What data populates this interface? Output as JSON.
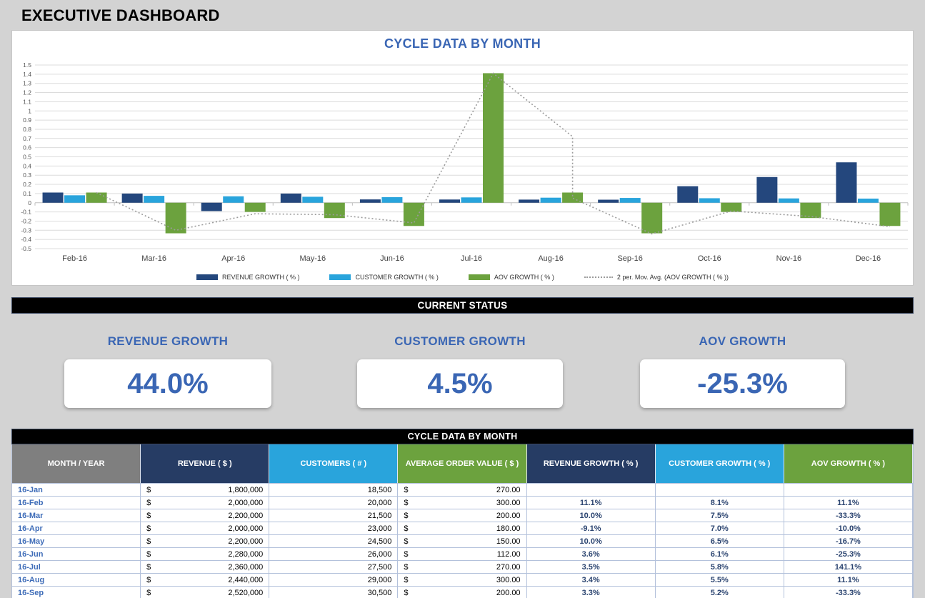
{
  "page": {
    "title": "EXECUTIVE DASHBOARD"
  },
  "colors": {
    "accent_blue": "#3a66b4",
    "bar_navy": "#24477d",
    "bar_lightblue": "#29a4dc",
    "bar_green": "#6ca23e",
    "header_navy": "#263c64",
    "header_gray": "#7f7f7f",
    "trendline_gray": "#9b9b9b",
    "gridline": "#dcdcdc",
    "zero_line": "#bfbfbf"
  },
  "chart_data": {
    "type": "bar",
    "title": "CYCLE DATA BY MONTH",
    "categories": [
      "Feb-16",
      "Mar-16",
      "Apr-16",
      "May-16",
      "Jun-16",
      "Jul-16",
      "Aug-16",
      "Sep-16",
      "Oct-16",
      "Nov-16",
      "Dec-16"
    ],
    "series": [
      {
        "name": "REVENUE GROWTH ( % )",
        "color": "#24477d",
        "values": [
          0.111,
          0.1,
          -0.091,
          0.1,
          0.036,
          0.035,
          0.034,
          0.033,
          0.18,
          0.28,
          0.44
        ]
      },
      {
        "name": "CUSTOMER GROWTH ( % )",
        "color": "#29a4dc",
        "values": [
          0.081,
          0.075,
          0.07,
          0.065,
          0.061,
          0.058,
          0.055,
          0.052,
          0.049,
          0.047,
          0.045
        ]
      },
      {
        "name": "AOV GROWTH ( % )",
        "color": "#6ca23e",
        "values": [
          0.111,
          -0.333,
          -0.1,
          -0.167,
          -0.253,
          1.411,
          0.111,
          -0.333,
          -0.1,
          -0.167,
          -0.253
        ]
      }
    ],
    "trendline": {
      "name": "2 per. Mov. Avg. (AOV GROWTH ( % ))",
      "color": "#9b9b9b",
      "points": [
        {
          "x": 0,
          "y": 0.11
        },
        {
          "x": 1,
          "y": -0.3
        },
        {
          "x": 2,
          "y": -0.12
        },
        {
          "x": 3,
          "y": -0.13
        },
        {
          "x": 4,
          "y": -0.22
        },
        {
          "x": 5,
          "y": 1.41
        },
        {
          "x": 6,
          "y": 0.72
        },
        {
          "x": 6,
          "y": 0.05
        },
        {
          "x": 7,
          "y": -0.34
        },
        {
          "x": 8,
          "y": -0.09
        },
        {
          "x": 9,
          "y": -0.15
        },
        {
          "x": 10,
          "y": -0.26
        }
      ]
    },
    "ylim": [
      -0.5,
      1.5
    ],
    "ytick_step": 0.1,
    "grid": true,
    "legend_position": "bottom",
    "legend": [
      {
        "label": "REVENUE GROWTH  ( % )",
        "type": "bar",
        "color": "#24477d"
      },
      {
        "label": "CUSTOMER GROWTH  ( % )",
        "type": "bar",
        "color": "#29a4dc"
      },
      {
        "label": "AOV GROWTH  ( % )",
        "type": "bar",
        "color": "#6ca23e"
      },
      {
        "label": "2 per. Mov. Avg.  (AOV GROWTH  ( % ))",
        "type": "dotted-line",
        "color": "#9b9b9b"
      }
    ]
  },
  "status": {
    "header": "CURRENT STATUS",
    "kpis": [
      {
        "label": "REVENUE GROWTH",
        "value": "44.0%"
      },
      {
        "label": "CUSTOMER GROWTH",
        "value": "4.5%"
      },
      {
        "label": "AOV GROWTH",
        "value": "-25.3%"
      }
    ]
  },
  "table": {
    "header": "CYCLE DATA BY MONTH",
    "currency_symbol": "$",
    "columns": [
      {
        "label": "MONTH / YEAR",
        "color": "#7f7f7f"
      },
      {
        "label": "REVENUE  ( $ )",
        "color": "#263c64"
      },
      {
        "label": "CUSTOMERS  ( # )",
        "color": "#29a4dc"
      },
      {
        "label": "AVERAGE ORDER VALUE  ( $ )",
        "color": "#6ca23e"
      },
      {
        "label": "REVENUE GROWTH  ( % )",
        "color": "#263c64"
      },
      {
        "label": "CUSTOMER GROWTH  ( % )",
        "color": "#29a4dc"
      },
      {
        "label": "AOV GROWTH  ( % )",
        "color": "#6ca23e"
      }
    ],
    "rows": [
      {
        "month": "16-Jan",
        "revenue": "1,800,000",
        "customers": "18,500",
        "aov": "270.00",
        "revenue_growth": "",
        "customer_growth": "",
        "aov_growth": ""
      },
      {
        "month": "16-Feb",
        "revenue": "2,000,000",
        "customers": "20,000",
        "aov": "300.00",
        "revenue_growth": "11.1%",
        "customer_growth": "8.1%",
        "aov_growth": "11.1%"
      },
      {
        "month": "16-Mar",
        "revenue": "2,200,000",
        "customers": "21,500",
        "aov": "200.00",
        "revenue_growth": "10.0%",
        "customer_growth": "7.5%",
        "aov_growth": "-33.3%"
      },
      {
        "month": "16-Apr",
        "revenue": "2,000,000",
        "customers": "23,000",
        "aov": "180.00",
        "revenue_growth": "-9.1%",
        "customer_growth": "7.0%",
        "aov_growth": "-10.0%"
      },
      {
        "month": "16-May",
        "revenue": "2,200,000",
        "customers": "24,500",
        "aov": "150.00",
        "revenue_growth": "10.0%",
        "customer_growth": "6.5%",
        "aov_growth": "-16.7%"
      },
      {
        "month": "16-Jun",
        "revenue": "2,280,000",
        "customers": "26,000",
        "aov": "112.00",
        "revenue_growth": "3.6%",
        "customer_growth": "6.1%",
        "aov_growth": "-25.3%"
      },
      {
        "month": "16-Jul",
        "revenue": "2,360,000",
        "customers": "27,500",
        "aov": "270.00",
        "revenue_growth": "3.5%",
        "customer_growth": "5.8%",
        "aov_growth": "141.1%"
      },
      {
        "month": "16-Aug",
        "revenue": "2,440,000",
        "customers": "29,000",
        "aov": "300.00",
        "revenue_growth": "3.4%",
        "customer_growth": "5.5%",
        "aov_growth": "11.1%"
      },
      {
        "month": "16-Sep",
        "revenue": "2,520,000",
        "customers": "30,500",
        "aov": "200.00",
        "revenue_growth": "3.3%",
        "customer_growth": "5.2%",
        "aov_growth": "-33.3%"
      }
    ]
  }
}
